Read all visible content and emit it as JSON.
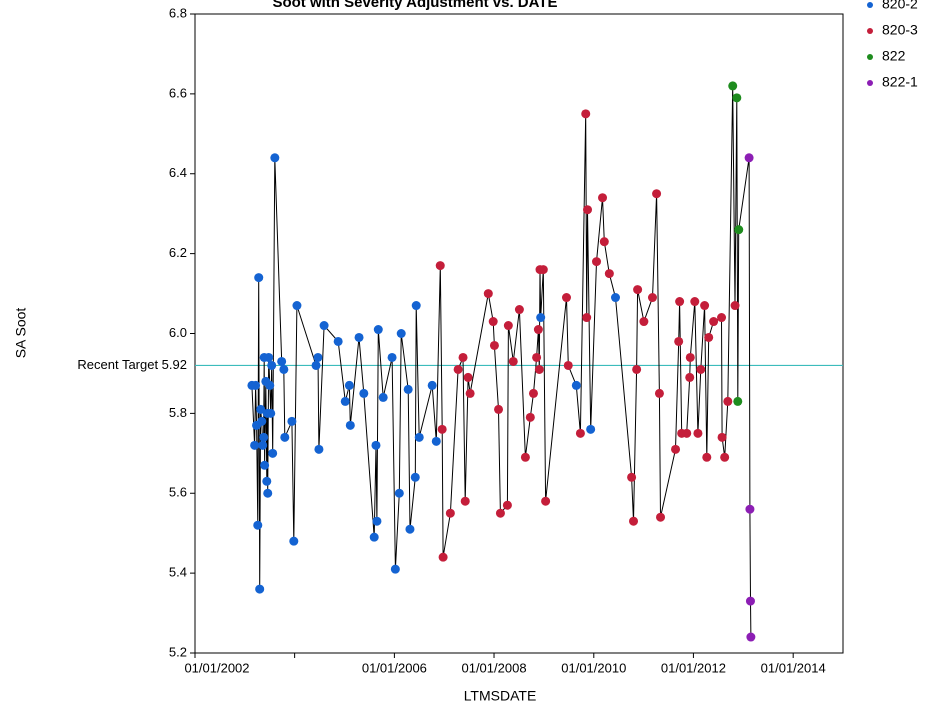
{
  "chart_data": {
    "type": "scatter-line",
    "title": "Soot with Severity Adjustment vs. DATE",
    "x_label": "LTMSDATE",
    "y_label": "SA Soot",
    "series": [
      {
        "name": "820-2",
        "color": "#1463d2"
      },
      {
        "name": "820-3",
        "color": "#c41e3a"
      },
      {
        "name": "822",
        "color": "#1e8c1e"
      },
      {
        "name": "822-1",
        "color": "#8c1eb4"
      }
    ],
    "x": [
      "2003-02-22",
      "2003-03-14",
      "2003-03-21",
      "2003-03-28",
      "2003-04-06",
      "2003-04-13",
      "2003-04-20",
      "2003-04-27",
      "2003-05-05",
      "2003-05-12",
      "2003-05-19",
      "2003-05-23",
      "2003-05-26",
      "2003-06-04",
      "2003-06-11",
      "2003-06-15",
      "2003-06-18",
      "2003-06-25",
      "2003-07-03",
      "2003-07-10",
      "2003-07-17",
      "2003-07-24",
      "2003-08-09",
      "2003-09-28",
      "2003-10-14",
      "2003-10-21",
      "2003-12-12",
      "2003-12-26",
      "2004-01-18",
      "2004-06-06",
      "2004-06-20",
      "2004-06-27",
      "2004-08-04",
      "2004-11-15",
      "2005-01-06",
      "2005-02-05",
      "2005-02-12",
      "2005-04-17",
      "2005-05-22",
      "2005-08-06",
      "2005-08-19",
      "2005-08-26",
      "2005-09-05",
      "2005-10-11",
      "2005-12-15",
      "2006-01-08",
      "2006-02-06",
      "2006-02-20",
      "2006-04-12",
      "2006-04-25",
      "2006-06-03",
      "2006-06-10",
      "2006-07-02",
      "2006-10-05",
      "2006-11-04",
      "2006-12-03",
      "2006-12-17",
      "2006-12-24",
      "2007-02-15",
      "2007-04-13",
      "2007-05-19",
      "2007-06-04",
      "2007-06-25",
      "2007-07-10",
      "2007-11-20",
      "2007-12-26",
      "2008-01-04",
      "2008-02-03",
      "2008-02-17",
      "2008-04-08",
      "2008-04-15",
      "2008-05-21",
      "2008-07-05",
      "2008-08-18",
      "2008-09-23",
      "2008-10-16",
      "2008-11-08",
      "2008-11-21",
      "2008-11-28",
      "2008-12-03",
      "2008-12-08",
      "2008-12-27",
      "2009-01-13",
      "2009-06-15",
      "2009-06-28",
      "2009-08-26",
      "2009-09-25",
      "2009-11-03",
      "2009-11-10",
      "2009-11-16",
      "2009-12-09",
      "2010-01-21",
      "2010-03-06",
      "2010-03-19",
      "2010-04-25",
      "2010-06-09",
      "2010-10-05",
      "2010-10-19",
      "2010-11-11",
      "2010-11-18",
      "2011-01-03",
      "2011-03-07",
      "2011-04-06",
      "2011-04-27",
      "2011-05-05",
      "2011-08-23",
      "2011-09-15",
      "2011-09-22",
      "2011-10-07",
      "2011-11-13",
      "2011-12-05",
      "2011-12-09",
      "2012-01-11",
      "2012-02-03",
      "2012-02-24",
      "2012-03-23",
      "2012-04-08",
      "2012-04-22",
      "2012-05-28",
      "2012-07-25",
      "2012-07-29",
      "2012-08-17",
      "2012-09-09",
      "2012-10-15",
      "2012-11-01",
      "2012-11-14",
      "2012-11-21",
      "2012-11-28",
      "2013-02-12",
      "2013-02-18",
      "2013-02-22",
      "2013-02-25"
    ],
    "values": [
      5.87,
      5.72,
      5.87,
      5.77,
      5.52,
      6.14,
      5.36,
      5.81,
      5.78,
      5.72,
      5.74,
      5.94,
      5.67,
      5.88,
      5.63,
      5.8,
      5.6,
      5.94,
      5.87,
      5.8,
      5.92,
      5.7,
      6.44,
      5.93,
      5.91,
      5.74,
      5.78,
      5.48,
      6.07,
      5.92,
      5.94,
      5.71,
      6.02,
      5.98,
      5.83,
      5.87,
      5.77,
      5.99,
      5.85,
      5.49,
      5.72,
      5.53,
      6.01,
      5.84,
      5.94,
      5.41,
      5.6,
      6.0,
      5.86,
      5.51,
      5.64,
      6.07,
      5.74,
      5.87,
      5.73,
      6.17,
      5.76,
      5.44,
      5.55,
      5.91,
      5.94,
      5.58,
      5.89,
      5.85,
      6.1,
      6.03,
      5.97,
      5.81,
      5.55,
      5.57,
      6.02,
      5.93,
      6.06,
      5.69,
      5.79,
      5.85,
      5.94,
      6.01,
      5.91,
      6.16,
      6.04,
      6.16,
      5.58,
      6.09,
      5.92,
      5.87,
      5.75,
      6.55,
      6.04,
      6.31,
      5.76,
      6.18,
      6.34,
      6.23,
      6.15,
      6.09,
      5.64,
      5.53,
      5.91,
      6.11,
      6.03,
      6.09,
      6.35,
      5.85,
      5.54,
      5.71,
      5.98,
      6.08,
      5.75,
      5.75,
      5.89,
      5.94,
      6.08,
      5.75,
      5.91,
      6.07,
      5.69,
      5.99,
      6.03,
      6.04,
      5.74,
      5.69,
      5.83,
      6.62,
      6.07,
      6.59,
      5.83,
      6.26,
      6.44,
      5.56,
      5.33,
      5.24
    ],
    "group": [
      "820-2",
      "820-2",
      "820-2",
      "820-2",
      "820-2",
      "820-2",
      "820-2",
      "820-2",
      "820-2",
      "820-2",
      "820-2",
      "820-2",
      "820-2",
      "820-2",
      "820-2",
      "820-2",
      "820-2",
      "820-2",
      "820-2",
      "820-2",
      "820-2",
      "820-2",
      "820-2",
      "820-2",
      "820-2",
      "820-2",
      "820-2",
      "820-2",
      "820-2",
      "820-2",
      "820-2",
      "820-2",
      "820-2",
      "820-2",
      "820-2",
      "820-2",
      "820-2",
      "820-2",
      "820-2",
      "820-2",
      "820-2",
      "820-2",
      "820-2",
      "820-2",
      "820-2",
      "820-2",
      "820-2",
      "820-2",
      "820-2",
      "820-2",
      "820-2",
      "820-2",
      "820-2",
      "820-2",
      "820-2",
      "820-3",
      "820-3",
      "820-3",
      "820-3",
      "820-3",
      "820-3",
      "820-3",
      "820-3",
      "820-3",
      "820-3",
      "820-3",
      "820-3",
      "820-3",
      "820-3",
      "820-3",
      "820-3",
      "820-3",
      "820-3",
      "820-3",
      "820-3",
      "820-3",
      "820-3",
      "820-3",
      "820-3",
      "820-3",
      "820-2",
      "820-3",
      "820-3",
      "820-3",
      "820-3",
      "820-2",
      "820-3",
      "820-3",
      "820-3",
      "820-3",
      "820-2",
      "820-3",
      "820-3",
      "820-3",
      "820-3",
      "820-2",
      "820-3",
      "820-3",
      "820-3",
      "820-3",
      "820-3",
      "820-3",
      "820-3",
      "820-3",
      "820-3",
      "820-3",
      "820-3",
      "820-3",
      "820-3",
      "820-3",
      "820-3",
      "820-3",
      "820-3",
      "820-3",
      "820-3",
      "820-3",
      "820-3",
      "820-3",
      "820-3",
      "820-3",
      "820-3",
      "820-3",
      "820-3",
      "822",
      "820-3",
      "822",
      "822",
      "822",
      "822-1",
      "822-1",
      "822-1",
      "822-1"
    ],
    "xlim": [
      "2002-01-01",
      "2015-01-01"
    ],
    "xticks": [
      {
        "value": "2002-01-01",
        "label": "01/01/2002"
      },
      {
        "value": "2004-01-01"
      },
      {
        "value": "2006-01-01",
        "label": "01/01/2006"
      },
      {
        "value": "2008-01-01",
        "label": "01/01/2008"
      },
      {
        "value": "2010-01-01",
        "label": "01/01/2010"
      },
      {
        "value": "2012-01-01",
        "label": "01/01/2012"
      },
      {
        "value": "2014-01-01",
        "label": "01/01/2014"
      }
    ],
    "ylim": [
      5.2,
      6.8
    ],
    "yticks": [
      5.2,
      5.4,
      5.6,
      5.8,
      {
        "value": 6,
        "label": "6.0"
      },
      6.2,
      6.4,
      6.6,
      6.8
    ],
    "reference": {
      "value": 5.92,
      "label": "Recent Target 5.92",
      "color": "#3cbcbc"
    },
    "line_color": "#000000"
  }
}
